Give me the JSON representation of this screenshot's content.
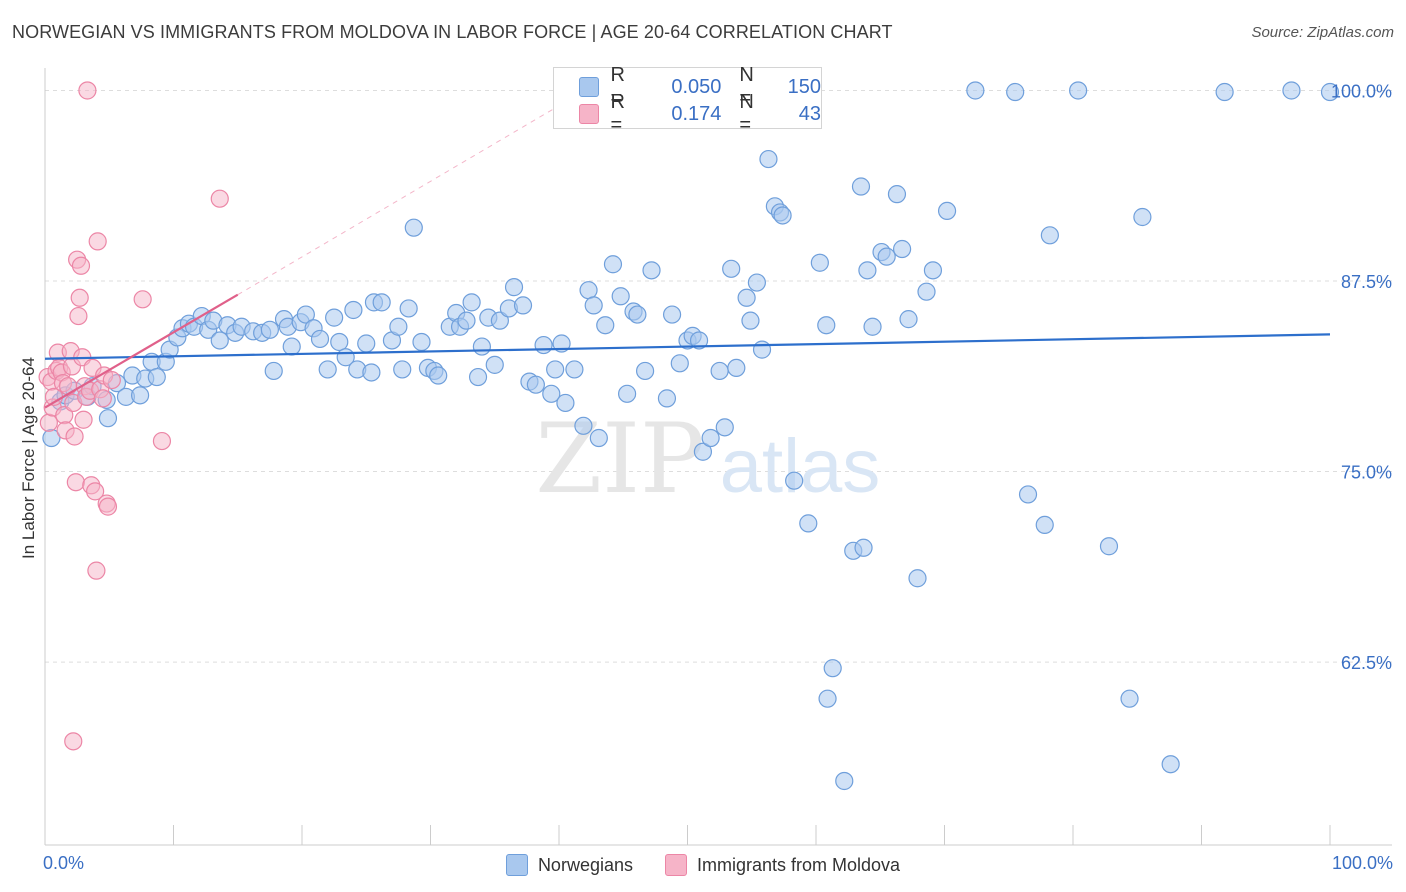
{
  "title": "NORWEGIAN VS IMMIGRANTS FROM MOLDOVA IN LABOR FORCE | AGE 20-64 CORRELATION CHART",
  "source": "Source: ZipAtlas.com",
  "watermark": {
    "zip": "ZIP",
    "atlas": "atlas"
  },
  "legend": {
    "rows": [
      {
        "r_label": "R =",
        "r_value": "0.050",
        "n_label": "N =",
        "n_value": "150"
      },
      {
        "r_label": "R =",
        "r_value": "0.174",
        "n_label": "N =",
        "n_value": "43"
      }
    ]
  },
  "bottom_legend": {
    "series1": "Norwegians",
    "series2": "Immigrants from Moldova"
  },
  "colors": {
    "blue_fill": "#a9c8ee",
    "blue_stroke": "#6f9fdb",
    "blue_line": "#2d6fcc",
    "pink_fill": "#f6b4c8",
    "pink_stroke": "#ec86a6",
    "pink_line": "#e0608a",
    "axis_text": "#3a6fc4",
    "grid": "#dddddd"
  },
  "chart_data": {
    "type": "scatter",
    "title": "NORWEGIAN VS IMMIGRANTS FROM MOLDOVA IN LABOR FORCE | AGE 20-64 CORRELATION CHART",
    "xlabel": "",
    "ylabel": "In Labor Force | Age 20-64",
    "xlim": [
      0,
      100
    ],
    "ylim": [
      50.5,
      102
    ],
    "x_tick_labels": [
      "0.0%",
      "100.0%"
    ],
    "y_ticks": [
      62.5,
      75.0,
      87.5,
      100.0
    ],
    "y_tick_labels": [
      "62.5%",
      "75.0%",
      "87.5%",
      "100.0%"
    ],
    "series": [
      {
        "name": "Norwegians",
        "r": 0.05,
        "n": 150,
        "trend": {
          "x": [
            0,
            100
          ],
          "y": [
            82.4,
            84.0
          ]
        },
        "points": [
          [
            0.5,
            77.2
          ],
          [
            1.2,
            79.6
          ],
          [
            1.6,
            80.0
          ],
          [
            2.3,
            80.3
          ],
          [
            3.3,
            79.9
          ],
          [
            3.7,
            80.6
          ],
          [
            4.8,
            79.7
          ],
          [
            4.9,
            78.5
          ],
          [
            5.6,
            80.8
          ],
          [
            6.3,
            79.9
          ],
          [
            6.8,
            81.3
          ],
          [
            7.4,
            80.0
          ],
          [
            7.8,
            81.1
          ],
          [
            8.3,
            82.2
          ],
          [
            8.7,
            81.2
          ],
          [
            9.4,
            82.2
          ],
          [
            9.7,
            83.0
          ],
          [
            10.3,
            83.8
          ],
          [
            10.7,
            84.4
          ],
          [
            11.2,
            84.7
          ],
          [
            11.6,
            84.5
          ],
          [
            12.2,
            85.2
          ],
          [
            12.7,
            84.3
          ],
          [
            13.1,
            84.9
          ],
          [
            13.6,
            83.6
          ],
          [
            14.2,
            84.6
          ],
          [
            14.8,
            84.1
          ],
          [
            15.3,
            84.5
          ],
          [
            16.2,
            84.2
          ],
          [
            16.9,
            84.1
          ],
          [
            17.5,
            84.3
          ],
          [
            17.8,
            81.6
          ],
          [
            18.6,
            85.0
          ],
          [
            18.9,
            84.5
          ],
          [
            19.2,
            83.2
          ],
          [
            19.9,
            84.8
          ],
          [
            20.3,
            85.3
          ],
          [
            20.9,
            84.4
          ],
          [
            21.4,
            83.7
          ],
          [
            22.0,
            81.7
          ],
          [
            22.5,
            85.1
          ],
          [
            22.9,
            83.5
          ],
          [
            23.4,
            82.5
          ],
          [
            24.0,
            85.6
          ],
          [
            24.3,
            81.7
          ],
          [
            25.0,
            83.4
          ],
          [
            25.4,
            81.5
          ],
          [
            25.6,
            86.1
          ],
          [
            26.2,
            86.1
          ],
          [
            27.0,
            83.6
          ],
          [
            27.5,
            84.5
          ],
          [
            27.8,
            81.7
          ],
          [
            28.3,
            85.7
          ],
          [
            28.7,
            91.0
          ],
          [
            29.3,
            83.5
          ],
          [
            29.8,
            81.8
          ],
          [
            30.3,
            81.6
          ],
          [
            30.6,
            81.3
          ],
          [
            31.5,
            84.5
          ],
          [
            32.0,
            85.4
          ],
          [
            32.3,
            84.5
          ],
          [
            32.8,
            84.9
          ],
          [
            33.2,
            86.1
          ],
          [
            33.7,
            81.2
          ],
          [
            34.0,
            83.2
          ],
          [
            34.5,
            85.1
          ],
          [
            35.0,
            82.0
          ],
          [
            35.4,
            84.9
          ],
          [
            36.1,
            85.7
          ],
          [
            36.5,
            87.1
          ],
          [
            37.2,
            85.9
          ],
          [
            37.7,
            80.9
          ],
          [
            38.2,
            80.7
          ],
          [
            38.8,
            83.3
          ],
          [
            39.4,
            80.1
          ],
          [
            39.7,
            81.7
          ],
          [
            40.2,
            83.4
          ],
          [
            40.5,
            79.5
          ],
          [
            41.2,
            81.7
          ],
          [
            41.9,
            78.0
          ],
          [
            42.3,
            86.9
          ],
          [
            42.7,
            85.9
          ],
          [
            43.1,
            77.2
          ],
          [
            43.6,
            84.6
          ],
          [
            44.2,
            88.6
          ],
          [
            44.8,
            86.5
          ],
          [
            45.3,
            80.1
          ],
          [
            45.8,
            85.5
          ],
          [
            46.1,
            85.3
          ],
          [
            46.7,
            81.6
          ],
          [
            47.2,
            88.2
          ],
          [
            48.4,
            79.8
          ],
          [
            48.8,
            85.3
          ],
          [
            49.4,
            82.1
          ],
          [
            50.0,
            83.6
          ],
          [
            50.4,
            83.9
          ],
          [
            50.9,
            83.6
          ],
          [
            51.2,
            76.3
          ],
          [
            51.8,
            77.2
          ],
          [
            52.5,
            81.6
          ],
          [
            52.9,
            77.9
          ],
          [
            53.4,
            88.3
          ],
          [
            53.8,
            81.8
          ],
          [
            54.6,
            86.4
          ],
          [
            54.9,
            84.9
          ],
          [
            55.4,
            87.4
          ],
          [
            55.8,
            83.0
          ],
          [
            56.3,
            95.5
          ],
          [
            56.8,
            92.4
          ],
          [
            57.2,
            92.0
          ],
          [
            57.4,
            91.8
          ],
          [
            58.3,
            74.4
          ],
          [
            59.4,
            71.6
          ],
          [
            60.3,
            88.7
          ],
          [
            60.8,
            84.6
          ],
          [
            60.9,
            60.1
          ],
          [
            61.3,
            62.1
          ],
          [
            62.2,
            54.7
          ],
          [
            62.9,
            69.8
          ],
          [
            63.5,
            93.7
          ],
          [
            63.7,
            70.0
          ],
          [
            64.0,
            88.2
          ],
          [
            64.4,
            84.5
          ],
          [
            65.1,
            89.4
          ],
          [
            65.5,
            89.1
          ],
          [
            66.3,
            93.2
          ],
          [
            66.7,
            89.6
          ],
          [
            67.2,
            85.0
          ],
          [
            67.9,
            68.0
          ],
          [
            68.6,
            86.8
          ],
          [
            69.1,
            88.2
          ],
          [
            70.2,
            92.1
          ],
          [
            72.4,
            100.0
          ],
          [
            75.5,
            99.9
          ],
          [
            76.5,
            73.5
          ],
          [
            77.8,
            71.5
          ],
          [
            78.2,
            90.5
          ],
          [
            80.4,
            100.0
          ],
          [
            82.8,
            70.1
          ],
          [
            84.4,
            60.1
          ],
          [
            85.4,
            91.7
          ],
          [
            87.6,
            55.8
          ],
          [
            91.8,
            99.9
          ],
          [
            97.0,
            100.0
          ],
          [
            100.0,
            99.9
          ]
        ]
      },
      {
        "name": "Immigrants from Moldova",
        "r": 0.174,
        "n": 43,
        "trend": {
          "x": [
            0,
            15
          ],
          "y": [
            79.2,
            86.6
          ]
        },
        "trend_extension": {
          "x": [
            15,
            40
          ],
          "y": [
            86.6,
            99.0
          ]
        },
        "points": [
          [
            0.2,
            81.2
          ],
          [
            0.3,
            78.2
          ],
          [
            0.5,
            80.9
          ],
          [
            0.6,
            79.2
          ],
          [
            0.7,
            79.9
          ],
          [
            0.9,
            81.6
          ],
          [
            1.0,
            82.8
          ],
          [
            1.1,
            81.8
          ],
          [
            1.3,
            81.5
          ],
          [
            1.4,
            80.8
          ],
          [
            1.5,
            78.7
          ],
          [
            1.6,
            77.7
          ],
          [
            1.8,
            80.6
          ],
          [
            2.0,
            82.9
          ],
          [
            2.1,
            81.9
          ],
          [
            2.2,
            79.5
          ],
          [
            2.3,
            77.3
          ],
          [
            2.4,
            74.3
          ],
          [
            2.5,
            88.9
          ],
          [
            2.6,
            85.2
          ],
          [
            2.7,
            86.4
          ],
          [
            2.8,
            88.5
          ],
          [
            2.9,
            82.5
          ],
          [
            3.0,
            78.4
          ],
          [
            3.1,
            80.6
          ],
          [
            3.2,
            79.9
          ],
          [
            3.3,
            100.0
          ],
          [
            3.5,
            80.3
          ],
          [
            3.6,
            74.1
          ],
          [
            3.7,
            81.8
          ],
          [
            3.9,
            73.7
          ],
          [
            4.0,
            68.5
          ],
          [
            4.1,
            90.1
          ],
          [
            4.3,
            80.4
          ],
          [
            4.5,
            79.8
          ],
          [
            4.6,
            81.3
          ],
          [
            4.8,
            72.9
          ],
          [
            4.9,
            72.7
          ],
          [
            5.2,
            81.0
          ],
          [
            7.6,
            86.3
          ],
          [
            9.1,
            77.0
          ],
          [
            13.6,
            92.9
          ],
          [
            2.2,
            57.3
          ]
        ]
      }
    ]
  }
}
